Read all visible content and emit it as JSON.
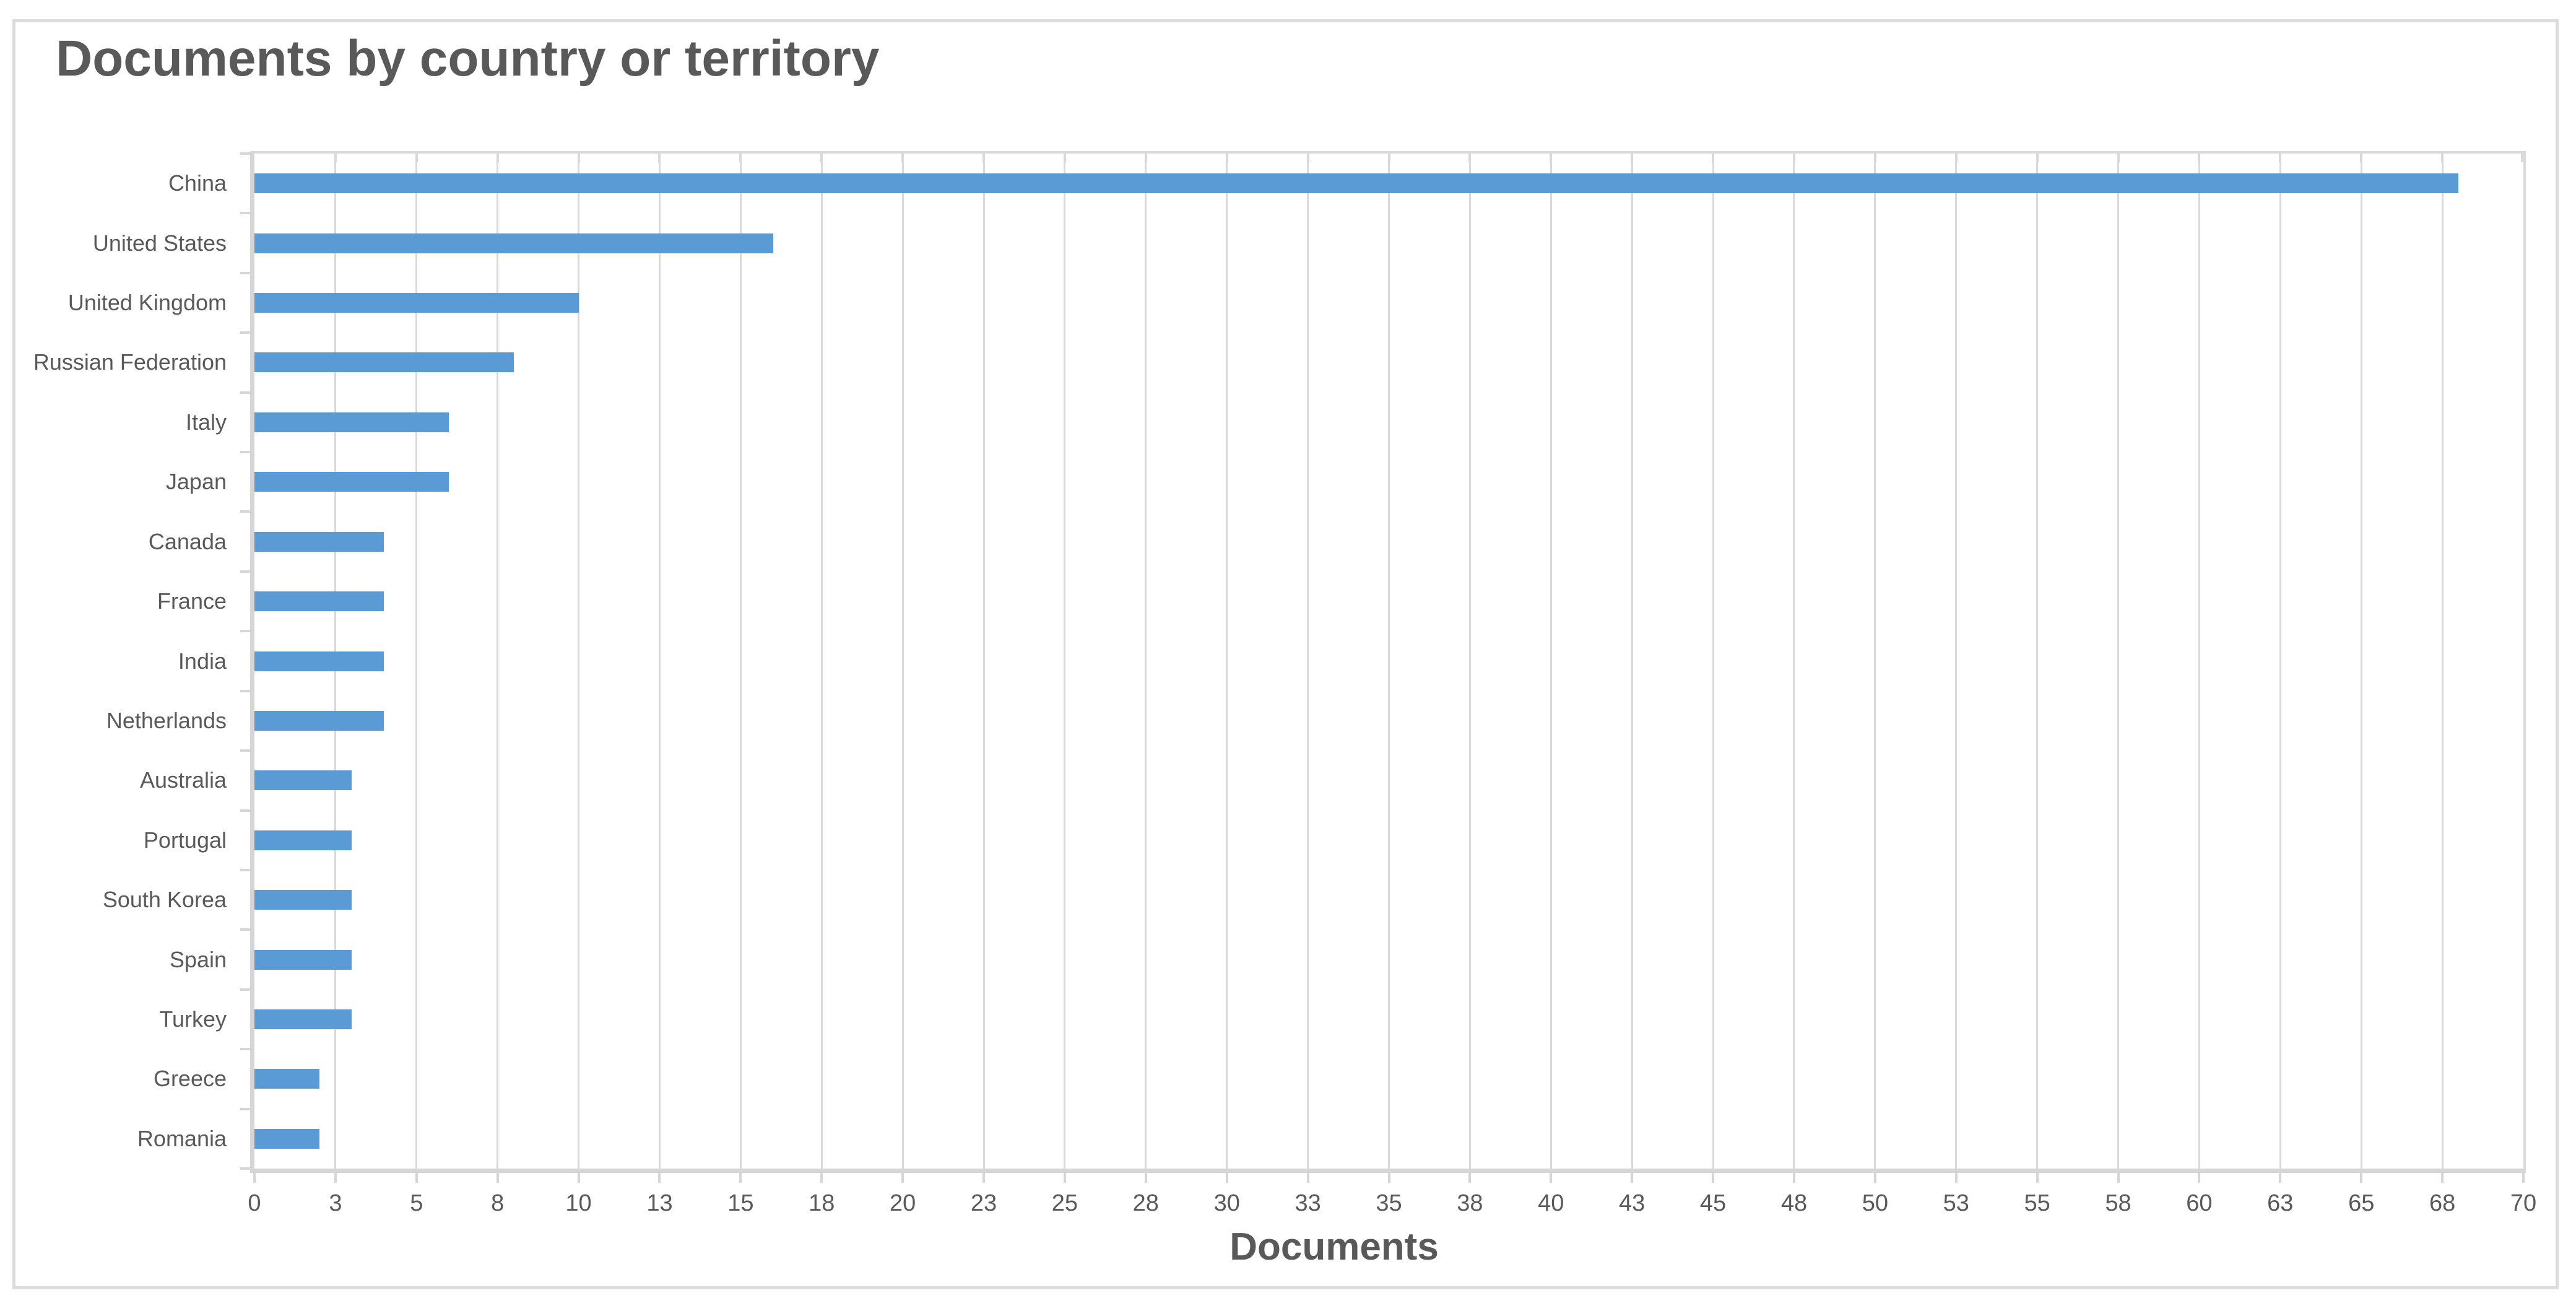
{
  "page": {
    "background_color": "#FFFFFF",
    "panel_border_color": "#DCDCDC"
  },
  "header": {
    "title": "Documents by country or territory"
  },
  "chart_data": {
    "type": "bar",
    "orientation": "horizontal",
    "title": "Documents by country or territory",
    "xlabel": "Documents",
    "ylabel": "",
    "categories": [
      "China",
      "United States",
      "United Kingdom",
      "Russian Federation",
      "Italy",
      "Japan",
      "Canada",
      "France",
      "India",
      "Netherlands",
      "Australia",
      "Portugal",
      "South Korea",
      "Spain",
      "Turkey",
      "Greece",
      "Romania"
    ],
    "values": [
      68,
      16,
      10,
      8,
      6,
      6,
      4,
      4,
      4,
      4,
      3,
      3,
      3,
      3,
      3,
      2,
      2
    ],
    "xlim": [
      0,
      70
    ],
    "x_tick_values": [
      0,
      2.5,
      5,
      7.5,
      10,
      12.5,
      15,
      17.5,
      20,
      22.5,
      25,
      27.5,
      30,
      32.5,
      35,
      37.5,
      40,
      42.5,
      45,
      47.5,
      50,
      52.5,
      55,
      57.5,
      60,
      62.5,
      65,
      67.5,
      70
    ],
    "x_tick_labels": [
      "0",
      "3",
      "5",
      "8",
      "10",
      "13",
      "15",
      "18",
      "20",
      "23",
      "25",
      "28",
      "30",
      "33",
      "35",
      "38",
      "40",
      "43",
      "45",
      "48",
      "50",
      "53",
      "55",
      "58",
      "60",
      "63",
      "65",
      "68",
      "70"
    ],
    "grid": true,
    "legend": "none",
    "bar_color": "#5B9BD5",
    "text_color": "#595959",
    "gridline_color": "#D9D9D9",
    "axis_line_color": "#D6D6D6"
  }
}
